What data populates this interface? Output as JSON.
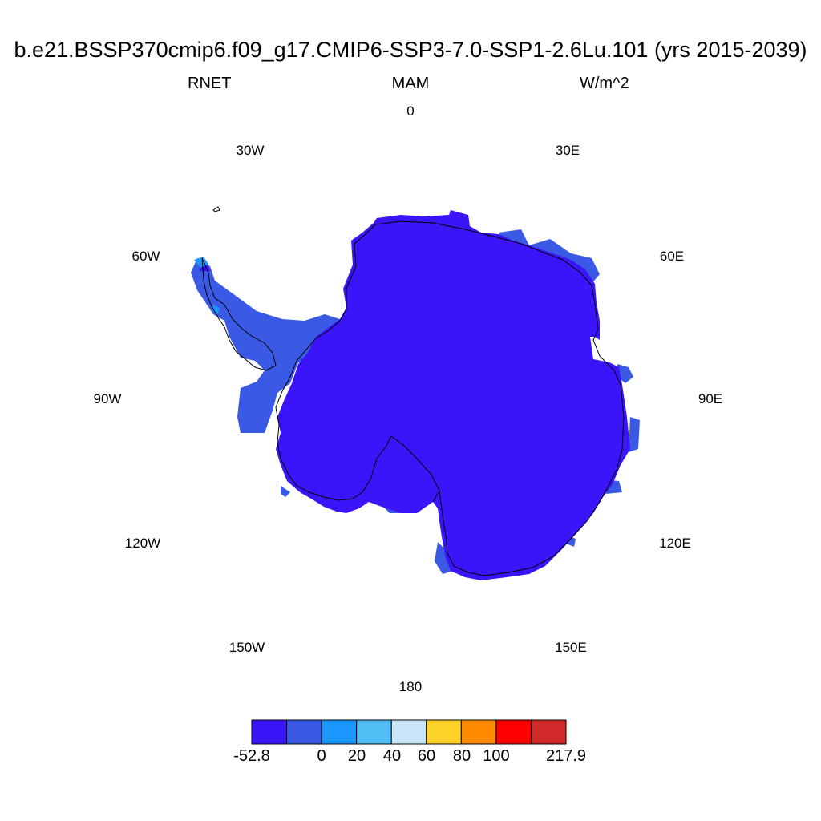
{
  "title": "b.e21.BSSP370cmip6.f09_g17.CMIP6-SSP3-7.0-SSP1-2.6Lu.101 (yrs 2015-2039)",
  "variable": "RNET",
  "season": "MAM",
  "units": "W/m^2",
  "longitude_labels": {
    "lon_0": "0",
    "lon_30e": "30E",
    "lon_60e": "60E",
    "lon_90e": "90E",
    "lon_120e": "120E",
    "lon_150e": "150E",
    "lon_180": "180",
    "lon_150w": "150W",
    "lon_120w": "120W",
    "lon_90w": "90W",
    "lon_60w": "60W",
    "lon_30w": "30W"
  },
  "colorbar": {
    "colors": [
      "#3c14fa",
      "#3a5ae6",
      "#1a96ff",
      "#50bef5",
      "#c8e6f8",
      "#ffd22a",
      "#ff8a00",
      "#ff0000",
      "#d22a2a"
    ],
    "labels": [
      "-52.8",
      "0",
      "20",
      "40",
      "60",
      "80",
      "100",
      "217.9"
    ]
  },
  "map": {
    "projection": "south-polar-stereographic",
    "colors": {
      "interior": "#3c14fa",
      "coastal": "#3a5ae6",
      "peninsula_tip": "#1a96ff",
      "coastline": "#000000"
    }
  }
}
